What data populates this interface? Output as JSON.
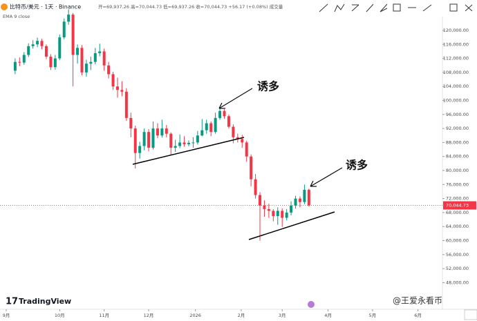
{
  "chart_data": {
    "type": "candlestick",
    "title": "比特币/美元 · 1天 · Binance",
    "subtitle": "开=69,937.26 高=70,044.73 低=69,937.26 收=70,044.73 +56.17 (+0.08%) 成交量",
    "indicator": "EMA 9 close",
    "brand": "TradingView",
    "watermark": "@王爱永看币",
    "up_color": "#089981",
    "down_color": "#f23645",
    "annotations": [
      "诱多",
      "诱多"
    ],
    "current_price": {
      "value": 70044.73,
      "label": "70,044.73"
    },
    "ylim": [
      40400,
      128670
    ],
    "xlim": [
      -3.4,
      96
    ],
    "yticks": [
      {
        "value": 48000,
        "label": "48,000.00"
      },
      {
        "value": 52000,
        "label": "52,000.00"
      },
      {
        "value": 56000,
        "label": "56,000.00"
      },
      {
        "value": 60000,
        "label": "60,000.00"
      },
      {
        "value": 64000,
        "label": "64,000.00"
      },
      {
        "value": 68000,
        "label": "68,000.00"
      },
      {
        "value": 72000,
        "label": "72,000.00"
      },
      {
        "value": 76000,
        "label": "76,000.00"
      },
      {
        "value": 80000,
        "label": "80,000.00"
      },
      {
        "value": 84000,
        "label": "84,000.00"
      },
      {
        "value": 88000,
        "label": "88,000.00"
      },
      {
        "value": 92000,
        "label": "92,000.00"
      },
      {
        "value": 96000,
        "label": "96,000.00"
      },
      {
        "value": 100000,
        "label": "100,000.00"
      },
      {
        "value": 104000,
        "label": "104,000.00"
      },
      {
        "value": 108000,
        "label": "108,000.00"
      },
      {
        "value": 112000,
        "label": "112,000.00"
      },
      {
        "value": 116000,
        "label": "116,000.00"
      },
      {
        "value": 120000,
        "label": "120,000.00"
      }
    ],
    "xticks": [
      {
        "value": -2,
        "label": "9月"
      },
      {
        "value": 10,
        "label": "10月"
      },
      {
        "value": 20,
        "label": "11月"
      },
      {
        "value": 30,
        "label": "12月"
      },
      {
        "value": 40.5,
        "label": "2026"
      },
      {
        "value": 50.8,
        "label": "2月"
      },
      {
        "value": 60,
        "label": "3月"
      },
      {
        "value": 70.3,
        "label": "4月"
      },
      {
        "value": 80.3,
        "label": "5月"
      },
      {
        "value": 90.5,
        "label": "6月"
      }
    ],
    "ohlc": [
      [
        108500,
        112000,
        107500,
        111000
      ],
      [
        111000,
        112300,
        109800,
        110800
      ],
      [
        110800,
        113800,
        110200,
        113000
      ],
      [
        113000,
        116300,
        112400,
        115500
      ],
      [
        115500,
        117200,
        114800,
        116000
      ],
      [
        116000,
        117900,
        115200,
        117000
      ],
      [
        117000,
        117600,
        114600,
        115500
      ],
      [
        115500,
        116000,
        111800,
        112500
      ],
      [
        112500,
        113200,
        108700,
        109500
      ],
      [
        109500,
        113000,
        108800,
        112000
      ],
      [
        112000,
        118800,
        111500,
        118000
      ],
      [
        118000,
        123400,
        117500,
        122500
      ],
      [
        122500,
        126000,
        121600,
        124500
      ],
      [
        124500,
        125000,
        104000,
        113000
      ],
      [
        113000,
        116000,
        110500,
        115000
      ],
      [
        115000,
        115800,
        107200,
        108000
      ],
      [
        108000,
        111600,
        106800,
        110500
      ],
      [
        110500,
        112500,
        108700,
        111000
      ],
      [
        111000,
        115000,
        110300,
        113500
      ],
      [
        113500,
        116200,
        112600,
        114000
      ],
      [
        114000,
        114800,
        108500,
        110000
      ],
      [
        110000,
        111000,
        106300,
        107500
      ],
      [
        107500,
        108200,
        103000,
        104000
      ],
      [
        104000,
        106500,
        100800,
        103000
      ],
      [
        103000,
        105500,
        101200,
        102500
      ],
      [
        102500,
        103500,
        94200,
        95000
      ],
      [
        95000,
        96500,
        89500,
        92000
      ],
      [
        92000,
        92800,
        80600,
        85000
      ],
      [
        85000,
        88200,
        83400,
        87000
      ],
      [
        87000,
        92000,
        85800,
        91000
      ],
      [
        91000,
        91800,
        85500,
        86500
      ],
      [
        86500,
        94000,
        86000,
        92000
      ],
      [
        92000,
        93500,
        89200,
        90000
      ],
      [
        90000,
        94500,
        89400,
        92000
      ],
      [
        92000,
        93000,
        89500,
        90500
      ],
      [
        90500,
        90900,
        84500,
        86500
      ],
      [
        86500,
        88800,
        85300,
        87000
      ],
      [
        87000,
        90300,
        86400,
        88000
      ],
      [
        88000,
        89800,
        86800,
        87500
      ],
      [
        87500,
        88600,
        86900,
        87900
      ],
      [
        87900,
        89500,
        86500,
        88000
      ],
      [
        88000,
        91300,
        87400,
        90000
      ],
      [
        90000,
        94700,
        89800,
        91500
      ],
      [
        91500,
        94500,
        90500,
        93500
      ],
      [
        93500,
        94000,
        89800,
        91000
      ],
      [
        91000,
        96500,
        90500,
        95000
      ],
      [
        95000,
        97900,
        94500,
        97000
      ],
      [
        97000,
        97500,
        94800,
        95500
      ],
      [
        95500,
        96000,
        92000,
        92500
      ],
      [
        92500,
        93200,
        87800,
        89500
      ],
      [
        89500,
        90500,
        88000,
        89000
      ],
      [
        89000,
        90200,
        86500,
        88000
      ],
      [
        88000,
        88500,
        82500,
        84000
      ],
      [
        84000,
        84600,
        75500,
        77500
      ],
      [
        77500,
        79000,
        72000,
        73000
      ],
      [
        73000,
        73800,
        60000,
        70000
      ],
      [
        70000,
        71500,
        66800,
        69000
      ],
      [
        69000,
        70500,
        66500,
        68500
      ],
      [
        68500,
        69000,
        65500,
        67000
      ],
      [
        67000,
        69500,
        64500,
        68500
      ],
      [
        68500,
        69200,
        63900,
        66500
      ],
      [
        66500,
        69000,
        65800,
        68000
      ],
      [
        68000,
        71200,
        67200,
        70000
      ],
      [
        70000,
        72800,
        69200,
        72000
      ],
      [
        72000,
        72600,
        69500,
        71000
      ],
      [
        71000,
        76000,
        70400,
        74500
      ],
      [
        74500,
        74800,
        69700,
        70044.73
      ]
    ]
  }
}
